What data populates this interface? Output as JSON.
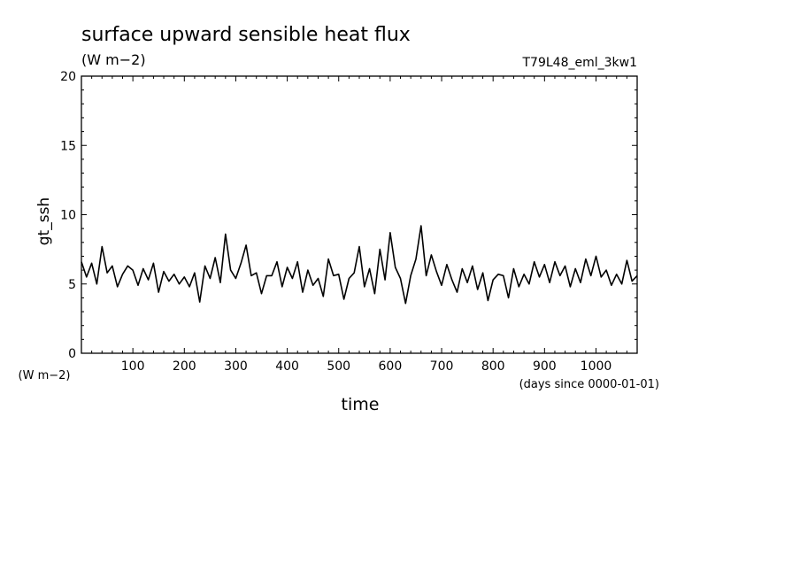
{
  "chart_data": {
    "type": "line",
    "title": "surface upward sensible heat flux",
    "subtitle": "(W m−2)",
    "run_label": "T79L48_eml_3kw1",
    "ylabel": "gt_ssh",
    "yunit": "(W m−2)",
    "xlabel": "time",
    "xunit": "(days since 0000-01-01)",
    "xlim": [
      0,
      1080
    ],
    "ylim": [
      0,
      20
    ],
    "xticks": [
      100,
      200,
      300,
      400,
      500,
      600,
      700,
      800,
      900,
      1000
    ],
    "xtick_labels": [
      "100",
      "200",
      "300",
      "400",
      "500",
      "600",
      "700",
      "800",
      "900",
      "1000"
    ],
    "yticks": [
      0,
      5,
      10,
      15,
      20
    ],
    "ytick_labels": [
      "0",
      "5",
      "10",
      "15",
      "20"
    ],
    "line_color": "#000000",
    "grid": false,
    "series": [
      {
        "x": [
          0,
          10,
          20,
          30,
          40,
          50,
          60,
          70,
          80,
          90,
          100,
          110,
          120,
          130,
          140,
          150,
          160,
          170,
          180,
          190,
          200,
          210,
          220,
          230,
          240,
          250,
          260,
          270,
          280,
          290,
          300,
          310,
          320,
          330,
          340,
          350,
          360,
          370,
          380,
          390,
          400,
          410,
          420,
          430,
          440,
          450,
          460,
          470,
          480,
          490,
          500,
          510,
          520,
          530,
          540,
          550,
          560,
          570,
          580,
          590,
          600,
          610,
          620,
          630,
          640,
          650,
          660,
          670,
          680,
          690,
          700,
          710,
          720,
          730,
          740,
          750,
          760,
          770,
          780,
          790,
          800,
          810,
          820,
          830,
          840,
          850,
          860,
          870,
          880,
          890,
          900,
          910,
          920,
          930,
          940,
          950,
          960,
          970,
          980,
          990,
          1000,
          1010,
          1020,
          1030,
          1040,
          1050,
          1060,
          1070,
          1080
        ],
        "y": [
          6.6,
          5.5,
          6.5,
          5.0,
          7.7,
          5.8,
          6.3,
          4.8,
          5.7,
          6.3,
          6.0,
          4.9,
          6.1,
          5.3,
          6.5,
          4.4,
          5.9,
          5.2,
          5.7,
          5.0,
          5.5,
          4.8,
          5.8,
          3.7,
          6.3,
          5.4,
          6.9,
          5.1,
          8.6,
          6.0,
          5.4,
          6.5,
          7.8,
          5.6,
          5.8,
          4.3,
          5.6,
          5.6,
          6.6,
          4.8,
          6.2,
          5.4,
          6.6,
          4.4,
          6.0,
          4.9,
          5.4,
          4.1,
          6.8,
          5.6,
          5.7,
          3.9,
          5.4,
          5.8,
          7.7,
          4.8,
          6.1,
          4.3,
          7.5,
          5.3,
          8.7,
          6.2,
          5.4,
          3.6,
          5.6,
          6.8,
          9.2,
          5.6,
          7.1,
          5.9,
          4.9,
          6.4,
          5.3,
          4.4,
          6.1,
          5.1,
          6.3,
          4.6,
          5.8,
          3.8,
          5.3,
          5.7,
          5.6,
          4.0,
          6.1,
          4.8,
          5.7,
          5.0,
          6.6,
          5.5,
          6.4,
          5.1,
          6.6,
          5.6,
          6.3,
          4.8,
          6.1,
          5.1,
          6.8,
          5.6,
          7.0,
          5.5,
          6.0,
          4.9,
          5.7,
          5.0,
          6.7,
          5.2,
          5.6
        ]
      }
    ]
  }
}
